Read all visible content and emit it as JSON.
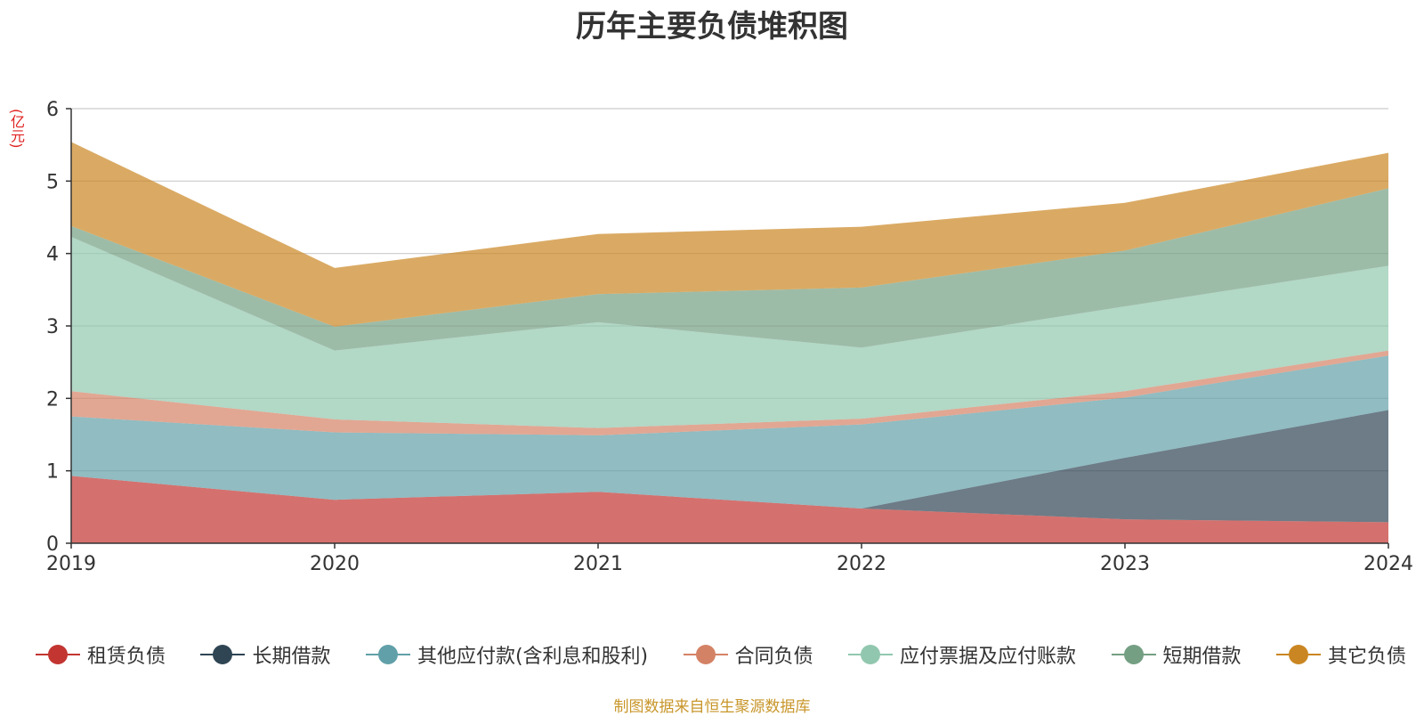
{
  "chart_data": {
    "type": "area",
    "stacked": true,
    "title": "历年主要负债堆积图",
    "unit_label": "(亿元)",
    "x": [
      "2019",
      "2020",
      "2021",
      "2022",
      "2023",
      "2024"
    ],
    "ylim": [
      0,
      6
    ],
    "yticks": [
      "0",
      "1",
      "2",
      "3",
      "4",
      "5",
      "6"
    ],
    "grid": true,
    "legend_position": "bottom",
    "series": [
      {
        "name": "租赁负债",
        "color": "#c23531",
        "values": [
          0.93,
          0.6,
          0.71,
          0.48,
          0.33,
          0.29
        ]
      },
      {
        "name": "长期借款",
        "color": "#2f4554",
        "values": [
          0.0,
          0.0,
          0.0,
          0.0,
          0.85,
          1.55
        ]
      },
      {
        "name": "其他应付款(含利息和股利)",
        "color": "#61a0a8",
        "values": [
          0.82,
          0.93,
          0.78,
          1.16,
          0.83,
          0.75
        ]
      },
      {
        "name": "合同负债",
        "color": "#d48265",
        "values": [
          0.35,
          0.18,
          0.1,
          0.08,
          0.09,
          0.07
        ]
      },
      {
        "name": "应付票据及应付账款",
        "color": "#91c7ae",
        "values": [
          2.13,
          0.95,
          1.46,
          0.98,
          1.17,
          1.17
        ]
      },
      {
        "name": "短期借款",
        "color": "#749f83",
        "values": [
          0.15,
          0.33,
          0.39,
          0.83,
          0.77,
          1.07
        ]
      },
      {
        "name": "其它负债",
        "color": "#ca8622",
        "values": [
          1.16,
          0.81,
          0.83,
          0.84,
          0.66,
          0.49
        ]
      }
    ]
  },
  "source_note": "制图数据来自恒生聚源数据库"
}
